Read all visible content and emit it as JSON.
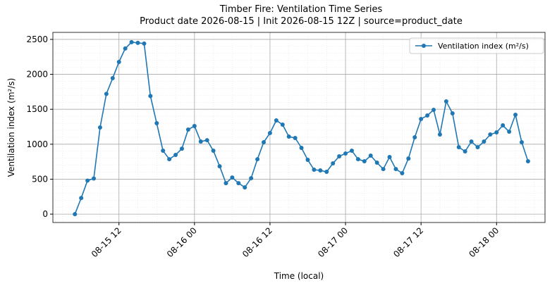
{
  "chart_data": {
    "type": "line",
    "title": "Timber Fire: Ventilation Time Series",
    "subtitle": "Product date 2026-08-15 | Init 2026-08-15 12Z | source=product_date",
    "xlabel": "Time (local)",
    "ylabel": "Ventilation index (m²/s)",
    "x": [
      "08-15 05",
      "08-15 06",
      "08-15 07",
      "08-15 08",
      "08-15 09",
      "08-15 10",
      "08-15 11",
      "08-15 12",
      "08-15 13",
      "08-15 14",
      "08-15 15",
      "08-15 16",
      "08-15 17",
      "08-15 18",
      "08-15 19",
      "08-15 20",
      "08-15 21",
      "08-15 22",
      "08-15 23",
      "08-16 00",
      "08-16 01",
      "08-16 02",
      "08-16 03",
      "08-16 04",
      "08-16 05",
      "08-16 06",
      "08-16 07",
      "08-16 08",
      "08-16 09",
      "08-16 10",
      "08-16 11",
      "08-16 12",
      "08-16 13",
      "08-16 14",
      "08-16 15",
      "08-16 16",
      "08-16 17",
      "08-16 18",
      "08-16 19",
      "08-16 20",
      "08-16 21",
      "08-16 22",
      "08-16 23",
      "08-17 00",
      "08-17 01",
      "08-17 02",
      "08-17 03",
      "08-17 04",
      "08-17 05",
      "08-17 06",
      "08-17 07",
      "08-17 08",
      "08-17 09",
      "08-17 10",
      "08-17 11",
      "08-17 12",
      "08-17 13",
      "08-17 14",
      "08-17 15",
      "08-17 16",
      "08-17 17",
      "08-17 18",
      "08-17 19",
      "08-17 20",
      "08-17 21",
      "08-17 22",
      "08-17 23",
      "08-18 00",
      "08-18 01",
      "08-18 02",
      "08-18 03",
      "08-18 04",
      "08-18 05"
    ],
    "series": [
      {
        "name": "Ventilation index (m²/s)",
        "color": "#1f77b4",
        "values": [
          0,
          230,
          480,
          510,
          1240,
          1720,
          1945,
          2177,
          2370,
          2460,
          2450,
          2440,
          1690,
          1300,
          907,
          786,
          847,
          937,
          1210,
          1260,
          1038,
          1058,
          907,
          685,
          443,
          524,
          443,
          383,
          514,
          786,
          1028,
          1160,
          1341,
          1280,
          1109,
          1089,
          948,
          776,
          635,
          625,
          605,
          726,
          827,
          867,
          907,
          786,
          756,
          837,
          736,
          645,
          817,
          645,
          585,
          796,
          1099,
          1361,
          1411,
          1492,
          1139,
          1613,
          1442,
          958,
          897,
          1038,
          958,
          1038,
          1139,
          1169,
          1270,
          1179,
          1421,
          1028,
          756
        ]
      }
    ],
    "xlim": [
      "08-15 01:30",
      "08-18 07:42"
    ],
    "xticks": [
      "08-15 12",
      "08-16 00",
      "08-16 12",
      "08-17 00",
      "08-17 12",
      "08-18 00"
    ],
    "ylim": [
      -120,
      2600
    ],
    "yticks": [
      0,
      500,
      1000,
      1500,
      2000,
      2500
    ],
    "grid": true,
    "legend": "upper right"
  }
}
